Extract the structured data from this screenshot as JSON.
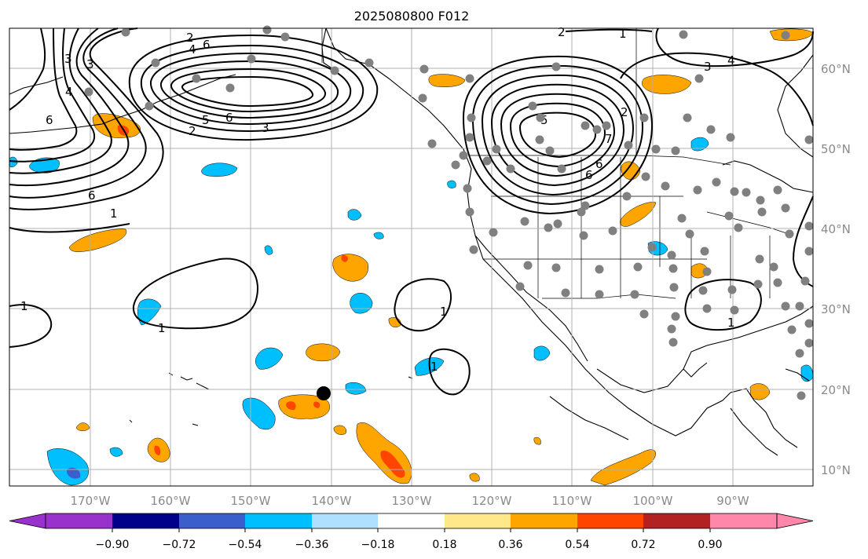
{
  "title": "2025080800 F012",
  "map": {
    "lon_ticks": [
      "170°W",
      "160°W",
      "150°W",
      "140°W",
      "130°W",
      "120°W",
      "110°W",
      "100°W",
      "90°W"
    ],
    "lat_ticks": [
      "60°N",
      "50°N",
      "40°N",
      "30°N",
      "20°N",
      "10°N"
    ],
    "contour_labels": [
      "2",
      "4",
      "6",
      "3",
      "4",
      "3",
      "6",
      "6",
      "1",
      "2",
      "5",
      "6",
      "3",
      "2",
      "2",
      "1",
      "3",
      "4",
      "5",
      "6",
      "7",
      "6",
      "1",
      "1",
      "1",
      "1",
      "1"
    ],
    "colors": {
      "contour": "#000000",
      "station": "#808080",
      "marker": "#000000",
      "coast": "#000000",
      "grid": "#b0b0b0"
    }
  },
  "colorbar": {
    "ticks": [
      "−0.90",
      "−0.72",
      "−0.54",
      "−0.36",
      "−0.18",
      "0.18",
      "0.36",
      "0.54",
      "0.72",
      "0.90"
    ],
    "colors": [
      "#9932cc",
      "#00008b",
      "#3a5fcd",
      "#00bfff",
      "#b0e0ff",
      "#ffffff",
      "#ffe88a",
      "#ffa500",
      "#ff4500",
      "#b22222",
      "#ff88aa"
    ]
  }
}
